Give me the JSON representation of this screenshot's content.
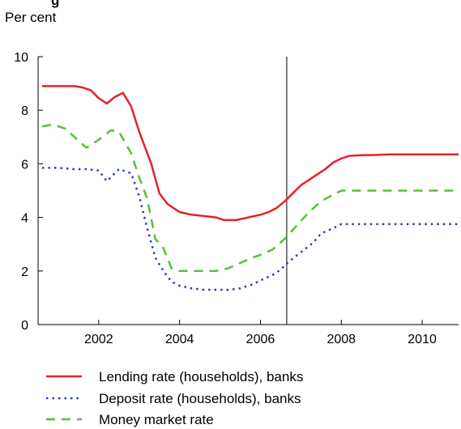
{
  "chart_data": {
    "type": "line",
    "title": "g",
    "unit_label": "Per cent",
    "xlabel": "",
    "ylabel": "",
    "xlim": [
      2000.5,
      2010.9
    ],
    "ylim": [
      0,
      10
    ],
    "x_ticks": [
      2002,
      2004,
      2006,
      2008,
      2010
    ],
    "x_tick_labels": [
      "2002",
      "2004",
      "2006",
      "2008",
      "2010"
    ],
    "y_ticks": [
      0,
      2,
      4,
      6,
      8,
      10
    ],
    "y_tick_labels": [
      "0",
      "2",
      "4",
      "6",
      "8",
      "10"
    ],
    "vline_x": 2006.65,
    "grid": false,
    "legend_position": "bottom",
    "series": [
      {
        "name": "Lending rate (households), banks",
        "color": "#e8202a",
        "style": "solid",
        "x": [
          2000.6,
          2000.9,
          2001.2,
          2001.4,
          2001.6,
          2001.8,
          2002.0,
          2002.2,
          2002.4,
          2002.6,
          2002.8,
          2003.0,
          2003.3,
          2003.5,
          2003.7,
          2004.0,
          2004.3,
          2004.6,
          2004.9,
          2005.1,
          2005.4,
          2005.7,
          2006.0,
          2006.2,
          2006.4,
          2006.6,
          2006.8,
          2007.0,
          2007.3,
          2007.6,
          2007.8,
          2008.0,
          2008.2,
          2008.5,
          2008.8,
          2009.2,
          2009.5,
          2010.0,
          2010.5,
          2010.9
        ],
        "y": [
          8.9,
          8.9,
          8.9,
          8.9,
          8.85,
          8.75,
          8.45,
          8.25,
          8.5,
          8.65,
          8.15,
          7.2,
          6.0,
          4.9,
          4.5,
          4.2,
          4.1,
          4.05,
          4.0,
          3.9,
          3.9,
          4.0,
          4.1,
          4.2,
          4.35,
          4.6,
          4.9,
          5.2,
          5.5,
          5.8,
          6.05,
          6.2,
          6.3,
          6.32,
          6.33,
          6.35,
          6.35,
          6.35,
          6.35,
          6.35
        ]
      },
      {
        "name": "Deposit rate (households), banks",
        "color": "#2a3fb8",
        "style": "dotted",
        "x": [
          2000.6,
          2001.0,
          2001.4,
          2001.7,
          2002.0,
          2002.2,
          2002.5,
          2002.8,
          2003.0,
          2003.2,
          2003.4,
          2003.6,
          2003.8,
          2004.0,
          2004.3,
          2004.6,
          2004.9,
          2005.2,
          2005.5,
          2005.8,
          2006.0,
          2006.3,
          2006.5,
          2006.7,
          2007.0,
          2007.3,
          2007.5,
          2007.8,
          2008.0,
          2008.5,
          2009.0,
          2009.5,
          2010.0,
          2010.9
        ],
        "y": [
          5.85,
          5.85,
          5.8,
          5.8,
          5.75,
          5.35,
          5.8,
          5.65,
          4.8,
          3.6,
          2.5,
          2.0,
          1.6,
          1.45,
          1.35,
          1.3,
          1.3,
          1.3,
          1.35,
          1.5,
          1.65,
          1.85,
          2.05,
          2.35,
          2.7,
          3.05,
          3.4,
          3.6,
          3.75,
          3.75,
          3.75,
          3.75,
          3.75,
          3.75
        ]
      },
      {
        "name": "Money market rate",
        "color": "#55c13e",
        "style": "dashed",
        "x": [
          2000.6,
          2000.8,
          2001.0,
          2001.2,
          2001.5,
          2001.7,
          2002.0,
          2002.3,
          2002.5,
          2002.8,
          2003.0,
          2003.2,
          2003.4,
          2003.6,
          2003.8,
          2004.0,
          2004.3,
          2004.6,
          2004.9,
          2005.2,
          2005.5,
          2005.8,
          2006.0,
          2006.3,
          2006.6,
          2006.9,
          2007.2,
          2007.5,
          2007.8,
          2008.0,
          2008.5,
          2009.0,
          2009.5,
          2010.0,
          2010.9
        ],
        "y": [
          7.4,
          7.45,
          7.4,
          7.3,
          6.85,
          6.6,
          6.9,
          7.25,
          7.2,
          6.4,
          5.5,
          4.7,
          3.2,
          2.85,
          2.1,
          2.0,
          2.0,
          2.0,
          2.0,
          2.1,
          2.3,
          2.5,
          2.6,
          2.8,
          3.2,
          3.7,
          4.2,
          4.6,
          4.85,
          5.0,
          5.0,
          5.0,
          5.0,
          5.0,
          5.0
        ]
      }
    ]
  }
}
